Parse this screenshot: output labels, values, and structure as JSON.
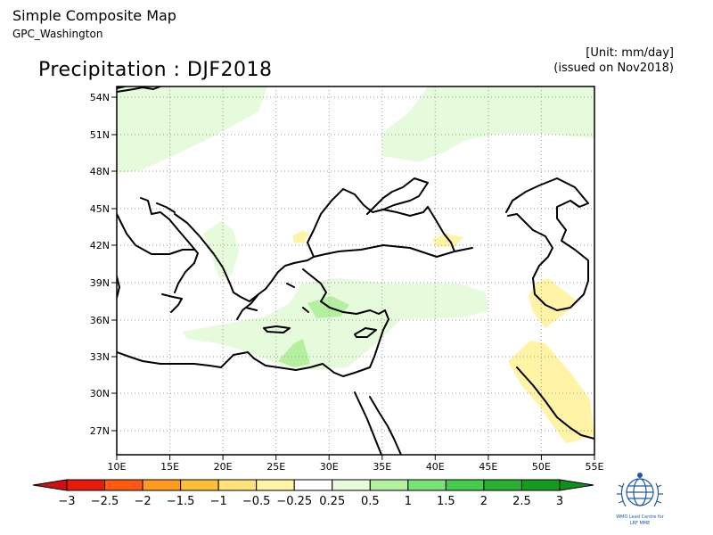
{
  "header": {
    "title": "Simple Composite Map",
    "subtitle": "GPC_Washington",
    "unit": "[Unit: mm/day]",
    "issued": "(issued on Nov2018)",
    "main_title": "Precipitation : DJF2018"
  },
  "map": {
    "lon_labels": [
      "10E",
      "15E",
      "20E",
      "25E",
      "30E",
      "35E",
      "40E",
      "45E",
      "50E",
      "55E"
    ],
    "lat_labels": [
      "54N",
      "51N",
      "48N",
      "45N",
      "42N",
      "39N",
      "36N",
      "33N",
      "30N",
      "27N"
    ],
    "lon_range": [
      10,
      55
    ],
    "lat_range": [
      25,
      55
    ]
  },
  "colorbar": {
    "labels": [
      "−3",
      "−2.5",
      "−2",
      "−1.5",
      "−1",
      "−0.5",
      "−0.25",
      "0.25",
      "0.5",
      "1",
      "1.5",
      "2",
      "2.5",
      "3"
    ],
    "colors": [
      "#e81a0a",
      "#ff5a10",
      "#ff9a1e",
      "#ffbe38",
      "#ffe27a",
      "#fff4a6",
      "#ffffff",
      "#e6fadc",
      "#b4f0a0",
      "#78e278",
      "#44cc4c",
      "#28b030",
      "#169a20"
    ],
    "end_low_color": "#d01010",
    "end_high_color": "#10901a"
  },
  "logo": {
    "name": "wmo-emblem",
    "caption_line1": "WMO Lead Centre for",
    "caption_line2": "LRF MME"
  }
}
